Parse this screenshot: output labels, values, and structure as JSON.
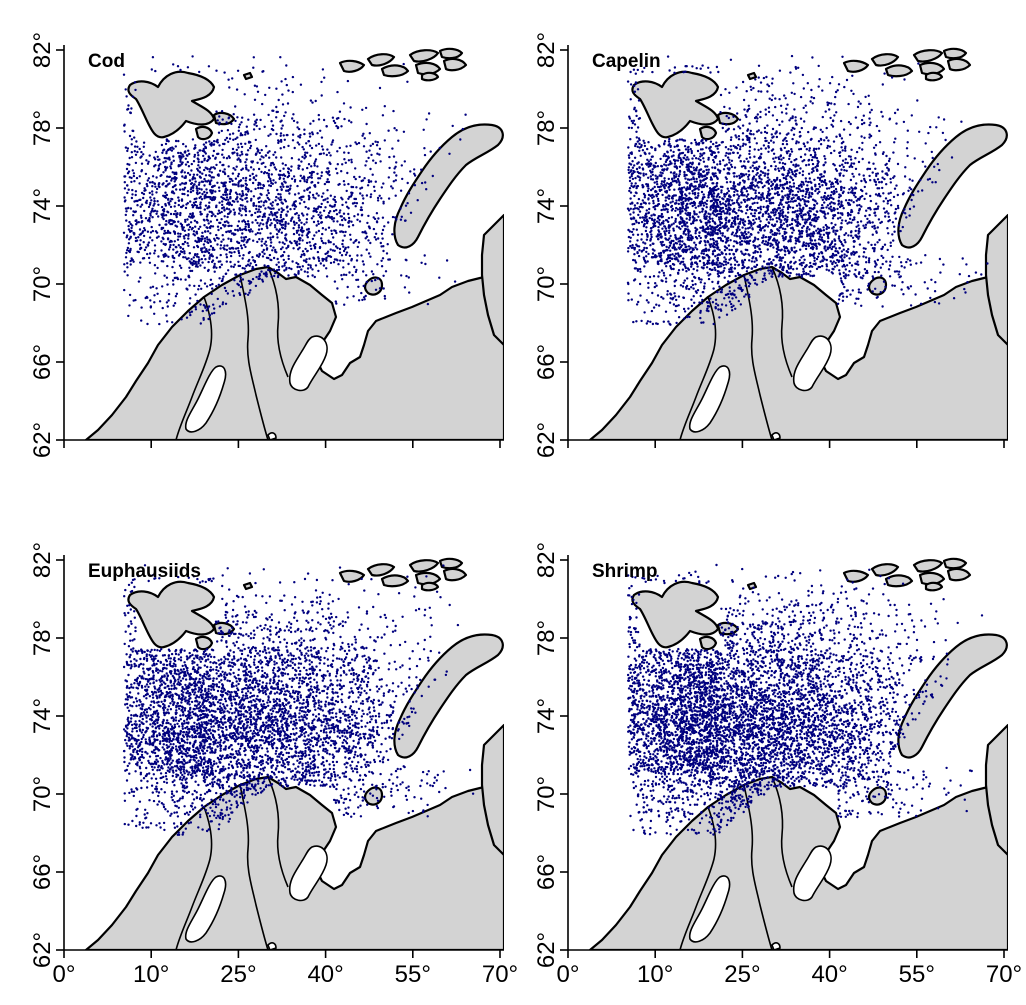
{
  "figure": {
    "x_ticks": [
      "0°",
      "10°",
      "25°",
      "40°",
      "55°",
      "70°"
    ],
    "y_ticks": [
      "62°",
      "66°",
      "70°",
      "74°",
      "78°",
      "82°"
    ]
  },
  "panels": [
    {
      "id": "cod",
      "title": "Cod",
      "density": 1.0
    },
    {
      "id": "capelin",
      "title": "Capelin",
      "density": 1.55
    },
    {
      "id": "euphausiids",
      "title": "Euphausiids",
      "density": 1.75
    },
    {
      "id": "shrimp",
      "title": "Shrimp",
      "density": 2.1
    }
  ],
  "colors": {
    "points": "#00007f",
    "land": "#d3d3d3",
    "coast": "#000000"
  },
  "chart_data": {
    "type": "scatter",
    "title": "",
    "xlabel": "",
    "ylabel": "",
    "xlim": [
      0,
      70
    ],
    "ylim": [
      62,
      82
    ],
    "x_unit": "degrees longitude E",
    "y_unit": "degrees latitude N",
    "panels": [
      "Cod",
      "Capelin",
      "Euphausiids",
      "Shrimp"
    ],
    "grid": false,
    "legend": "none"
  }
}
